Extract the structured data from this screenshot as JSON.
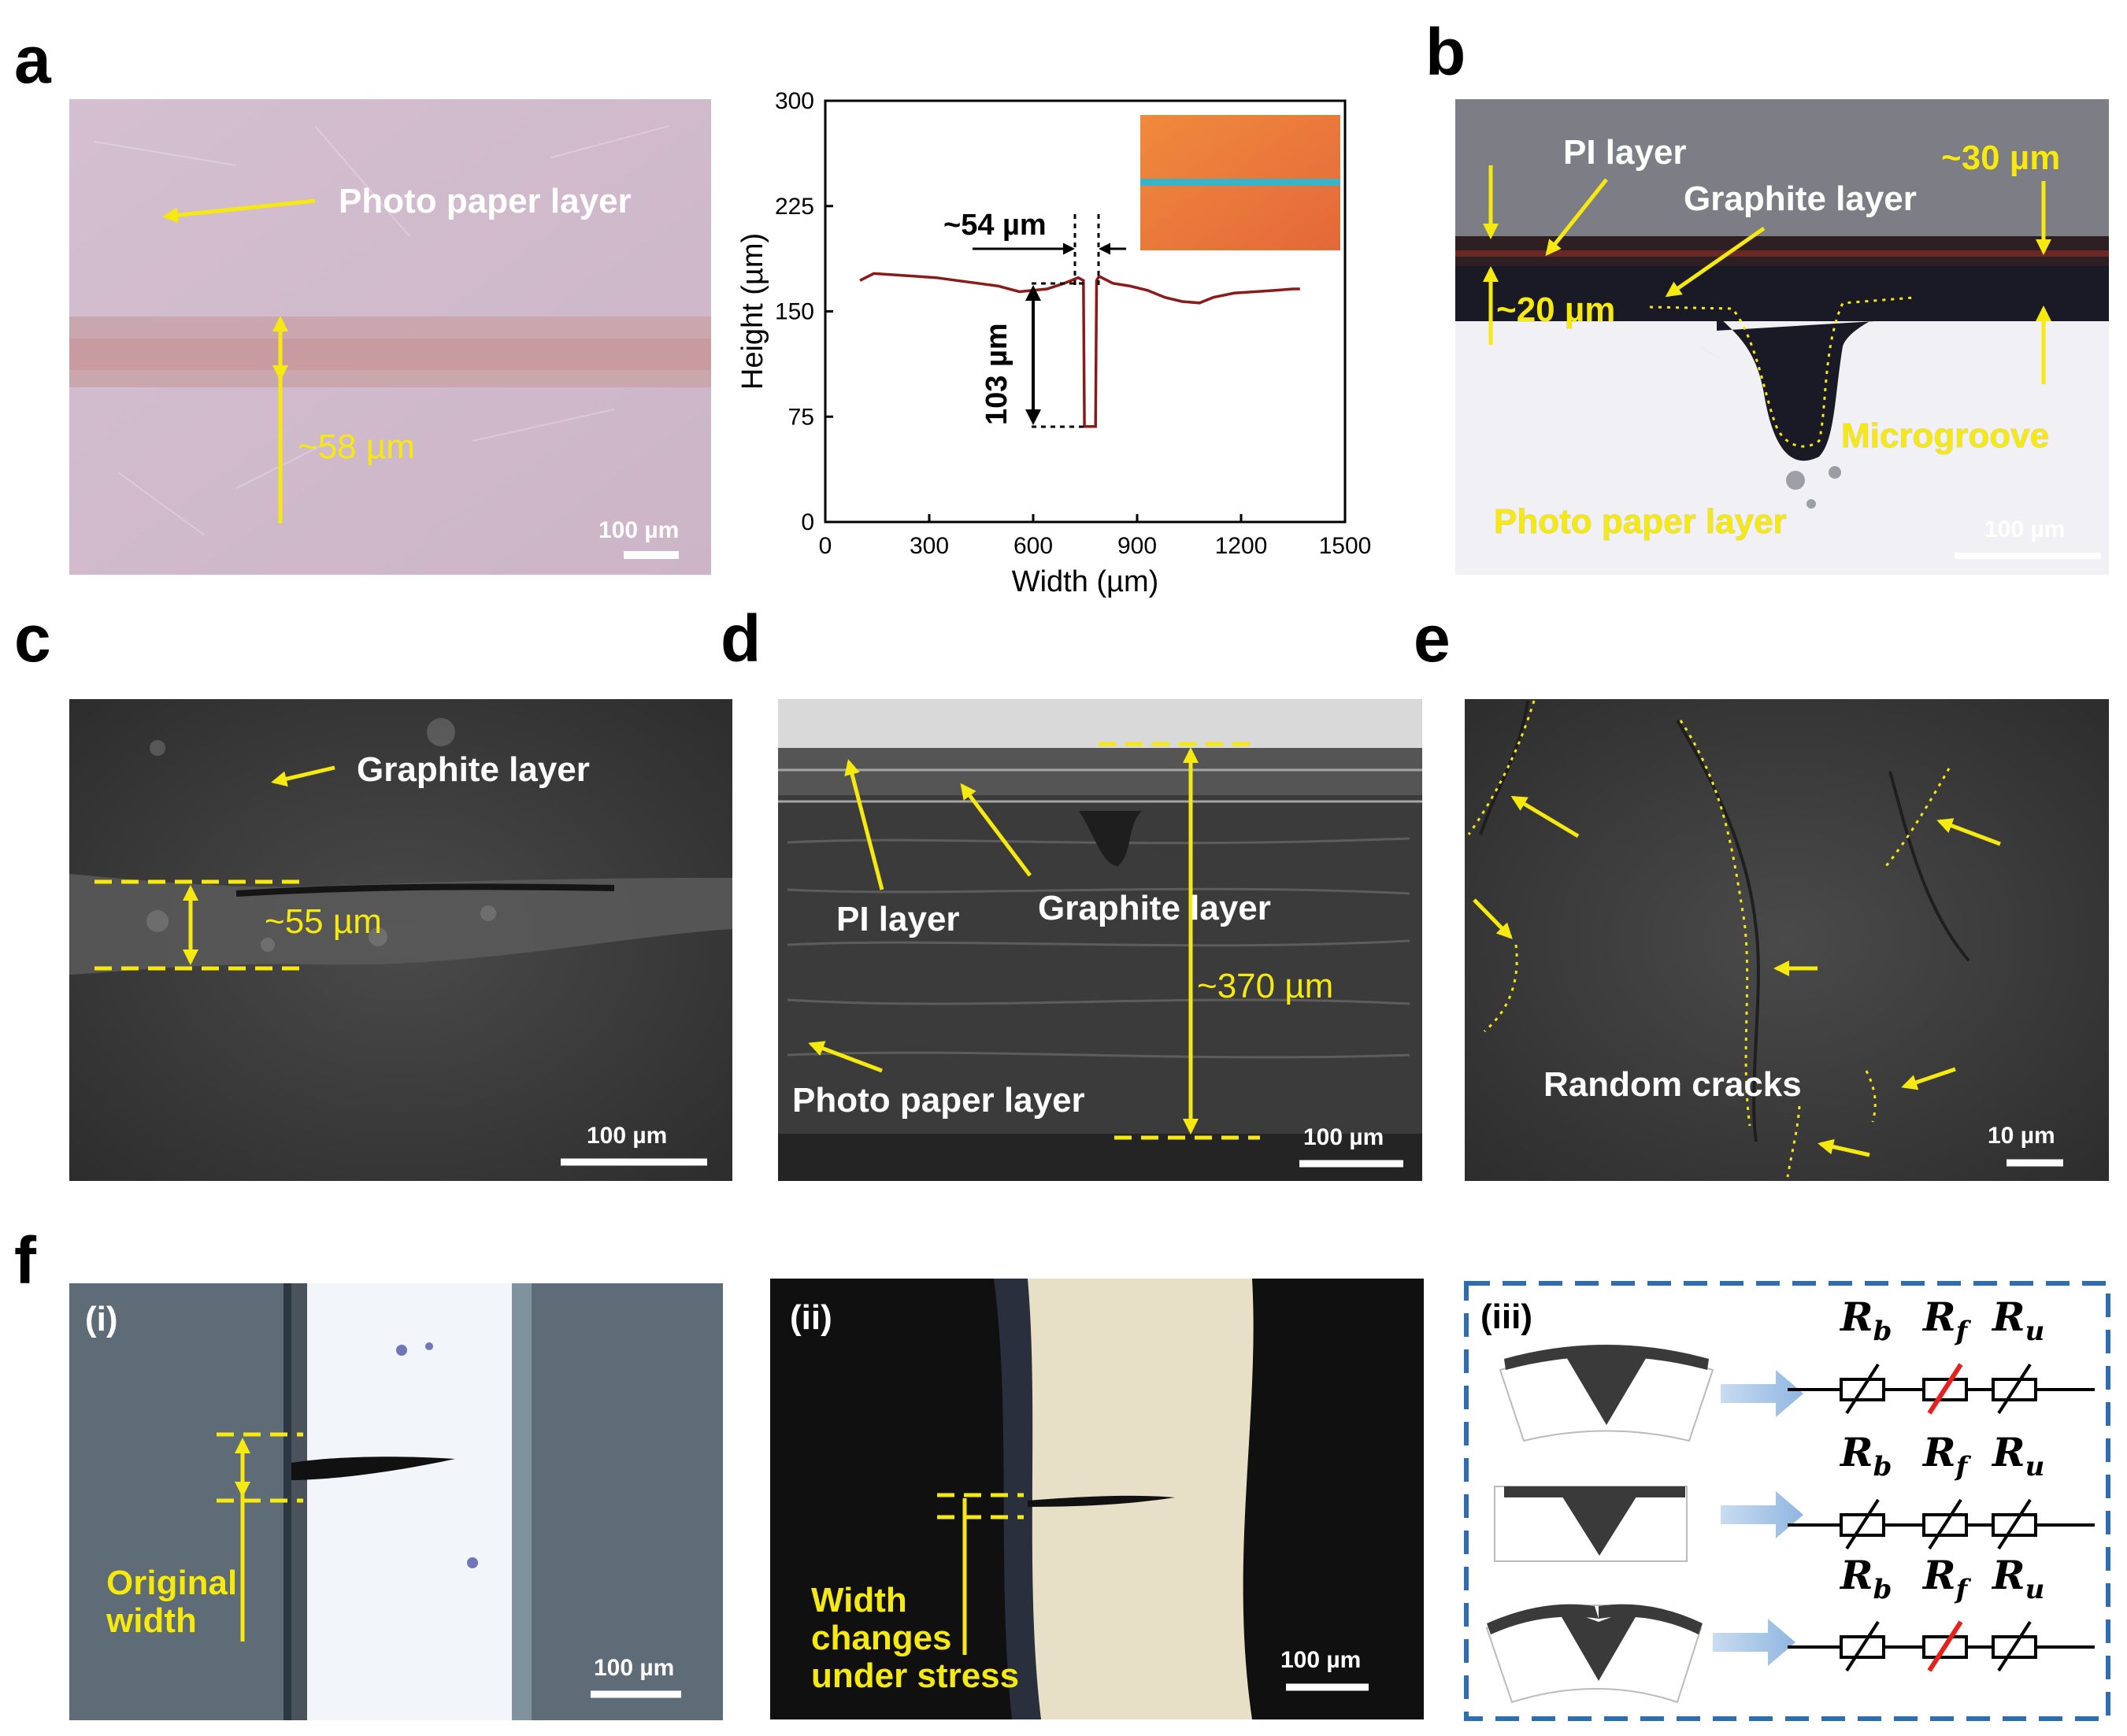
{
  "figure": {
    "panel_labels": {
      "a": "a",
      "b": "b",
      "c": "c",
      "d": "d",
      "e": "e",
      "f": "f"
    },
    "a_image": {
      "label_photo_paper": "Photo paper layer",
      "label_width": "~58 µm",
      "scale_bar": "100 µm"
    },
    "a_chart": {
      "label_width": "~54 µm",
      "label_depth": "103 µm"
    },
    "b": {
      "label_pi": "PI layer",
      "label_graphite": "Graphite layer",
      "label_30": "~30 µm",
      "label_20": "~20 µm",
      "label_microgroove": "Microgroove",
      "label_photo_paper": "Photo paper layer",
      "scale_bar": "100 µm"
    },
    "c": {
      "label_graphite": "Graphite layer",
      "label_width": "~55 µm",
      "scale_bar": "100 µm"
    },
    "d": {
      "label_pi": "PI layer",
      "label_graphite": "Graphite layer",
      "label_thickness": "~370 µm",
      "label_photo_paper": "Photo paper layer",
      "scale_bar": "100 µm"
    },
    "e": {
      "label_cracks": "Random cracks",
      "scale_bar": "10 µm"
    },
    "f": {
      "i": {
        "tag": "(i)",
        "label_line1": "Original",
        "label_line2": "width",
        "scale_bar": "100 µm"
      },
      "ii": {
        "tag": "(ii)",
        "label_line1": "Width",
        "label_line2": "changes",
        "label_line3": "under stress",
        "scale_bar": "100 µm"
      },
      "iii": {
        "tag": "(iii)",
        "r_main": "R",
        "r_b_sub": "b",
        "r_f_sub": "f",
        "r_u_sub": "u"
      }
    }
  },
  "colors": {
    "annotation_yellow": "#f6e90f",
    "profile_line": "#8b1a1a",
    "broken_resistor": "#e8201b",
    "frame_blue": "#2f6db3"
  },
  "chart_data": {
    "type": "line",
    "xlabel": "Width (µm)",
    "ylabel": "Height (µm)",
    "xlim": [
      0,
      1500
    ],
    "ylim": [
      0,
      300
    ],
    "xticks": [
      0,
      300,
      600,
      900,
      1200,
      1500
    ],
    "yticks": [
      0,
      75,
      150,
      225,
      300
    ],
    "grid": false,
    "series": [
      {
        "x": [
          100,
          140,
          200,
          260,
          320,
          380,
          440,
          500,
          560,
          600,
          640,
          690,
          730,
          745,
          748,
          780,
          783,
          790,
          830,
          880,
          930,
          980,
          1030,
          1080,
          1120,
          1180,
          1240,
          1300,
          1350,
          1370
        ],
        "y": [
          172,
          177,
          176,
          175,
          174,
          172,
          170,
          168,
          164,
          165,
          166,
          170,
          174,
          172,
          68,
          68,
          172,
          175,
          170,
          168,
          165,
          160,
          157,
          156,
          160,
          163,
          164,
          165,
          166,
          166
        ]
      }
    ]
  }
}
